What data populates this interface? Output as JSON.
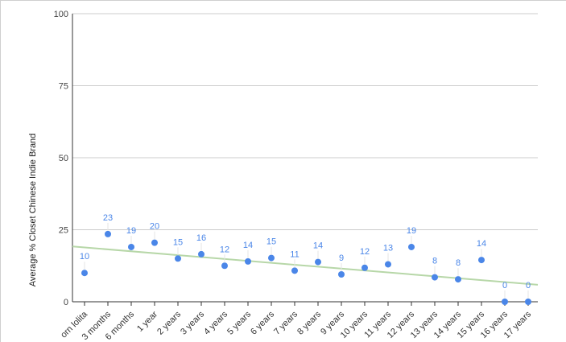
{
  "chart_data": {
    "type": "scatter",
    "title": "",
    "xlabel": "",
    "ylabel": "Average % Closet Chinese Indie Brand",
    "ylim": [
      0,
      100
    ],
    "yticks": [
      "0",
      "25",
      "50",
      "75",
      "100"
    ],
    "grid": true,
    "legend": "none",
    "categories": [
      "Newborn lolita",
      "3 months",
      "6 months",
      "1 year",
      "2 years",
      "3 years",
      "4 years",
      "5 years",
      "6 years",
      "7 years",
      "8 years",
      "9 years",
      "10 years",
      "11 years",
      "12 years",
      "13 years",
      "14 years",
      "15 years",
      "16 years",
      "17 years"
    ],
    "display_categories": [
      "orn lolita",
      "3 months",
      "6 months",
      "1 year",
      "2 years",
      "3 years",
      "4 years",
      "5 years",
      "6 years",
      "7 years",
      "8 years",
      "9 years",
      "10 years",
      "11 years",
      "12 years",
      "13 years",
      "14 years",
      "15 years",
      "16 years",
      "17 years"
    ],
    "values": [
      10,
      23.5,
      19,
      20.5,
      15,
      16.5,
      12.5,
      14,
      15.2,
      10.8,
      13.8,
      9.5,
      11.8,
      13,
      19,
      8.5,
      7.8,
      14.5,
      0,
      0
    ],
    "data_labels": [
      "10",
      "23",
      "19",
      "20",
      "15",
      "16",
      "12",
      "14",
      "15",
      "11",
      "14",
      "9",
      "12",
      "13",
      "19",
      "8",
      "8",
      "14",
      "0",
      "0"
    ],
    "trendline": {
      "type": "linear",
      "start": 19.2,
      "end": 5.9
    },
    "colors": {
      "point": "#4a86e8",
      "label": "#4a86e8",
      "trendline": "#b7d7a8",
      "grid": "#cccccc",
      "axis": "#333333"
    }
  }
}
